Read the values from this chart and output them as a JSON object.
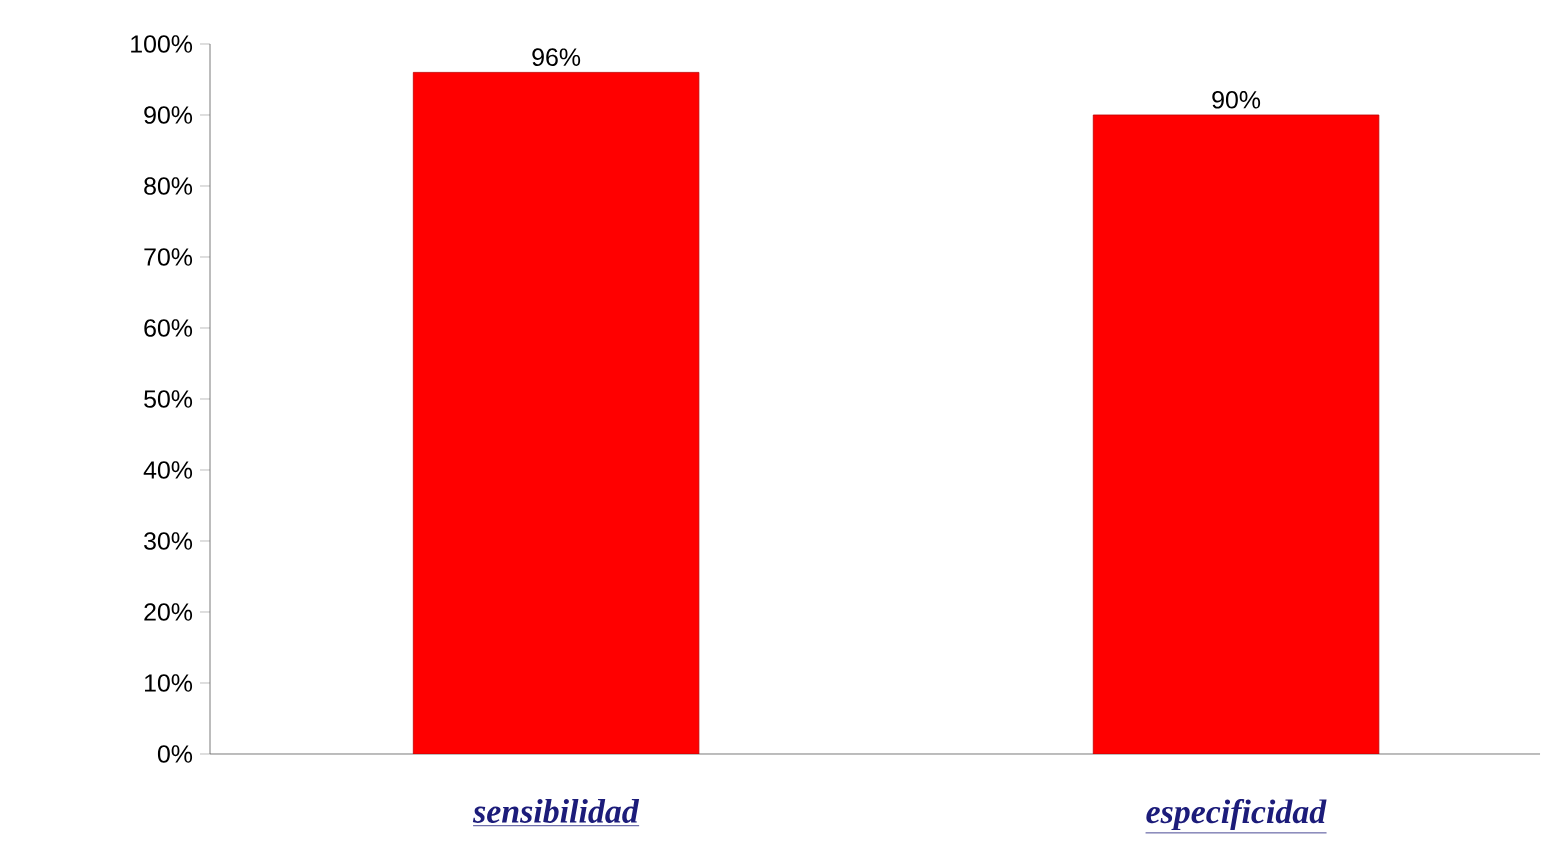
{
  "chart_data": {
    "type": "bar",
    "categories": [
      "*sensibilidad*",
      "*especificidad*"
    ],
    "values": [
      96,
      90
    ],
    "value_labels": [
      "96%",
      "90%"
    ],
    "color": "#ff0000",
    "ylim": [
      0,
      100
    ],
    "yticks": [
      {
        "value": 0,
        "label": "0%"
      },
      {
        "value": 10,
        "label": "10%"
      },
      {
        "value": 20,
        "label": "20%"
      },
      {
        "value": 30,
        "label": "30%"
      },
      {
        "value": 40,
        "label": "40%"
      },
      {
        "value": 50,
        "label": "50%"
      },
      {
        "value": 60,
        "label": "60%"
      },
      {
        "value": 70,
        "label": "70%"
      },
      {
        "value": 80,
        "label": "80%"
      },
      {
        "value": 90,
        "label": "90%"
      },
      {
        "value": 100,
        "label": "100%"
      }
    ]
  }
}
